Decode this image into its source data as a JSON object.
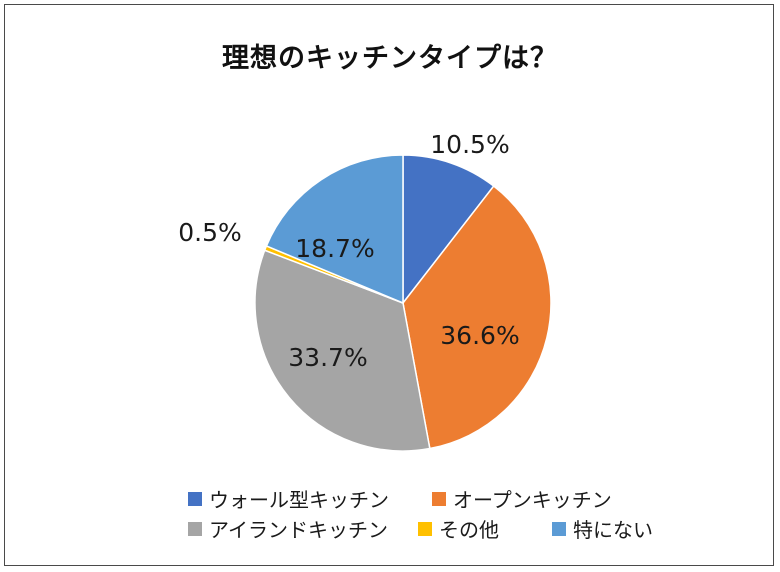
{
  "chart_data": {
    "type": "pie",
    "title": "理想のキッチンタイプは？",
    "start_angle_deg": 0,
    "direction": "clockwise",
    "slices": [
      {
        "label": "ウォール型キッチン",
        "value": 10.5,
        "value_label": "10.5%",
        "color": "#4472C4"
      },
      {
        "label": "オープンキッチン",
        "value": 36.6,
        "value_label": "36.6%",
        "color": "#ED7D31"
      },
      {
        "label": "アイランドキッチン",
        "value": 33.7,
        "value_label": "33.7%",
        "color": "#A5A5A5"
      },
      {
        "label": "その他",
        "value": 0.5,
        "value_label": "0.5%",
        "color": "#FFC000"
      },
      {
        "label": "特にない",
        "value": 18.7,
        "value_label": "18.7%",
        "color": "#5B9BD5"
      }
    ],
    "legend_position": "bottom"
  }
}
